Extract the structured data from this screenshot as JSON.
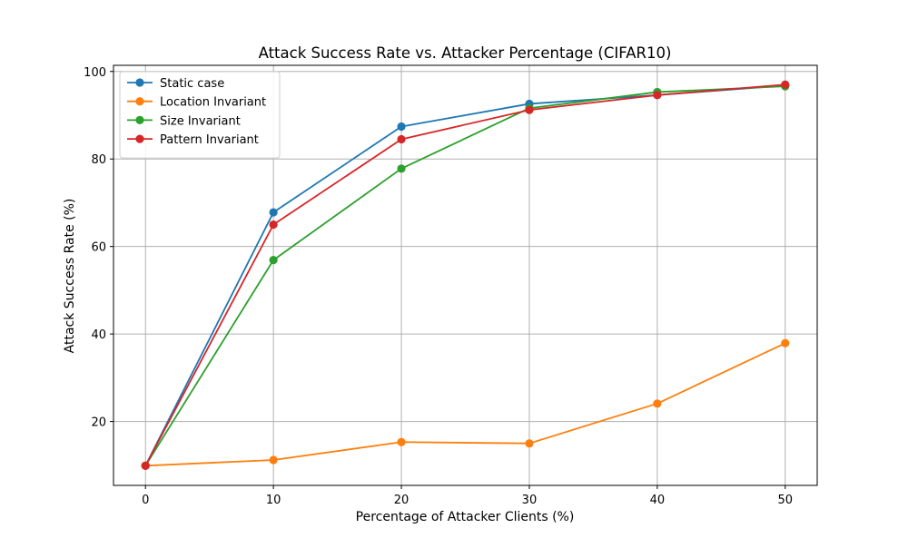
{
  "chart_data": {
    "type": "line",
    "title": "Attack Success Rate vs. Attacker Percentage (CIFAR10)",
    "xlabel": "Percentage of Attacker Clients (%)",
    "ylabel": "Attack Success Rate (%)",
    "x": [
      0,
      10,
      20,
      30,
      40,
      50
    ],
    "xticks": [
      "0",
      "10",
      "20",
      "30",
      "40",
      "50"
    ],
    "yticks": [
      "20",
      "40",
      "60",
      "80",
      "100"
    ],
    "xlim": [
      -2.5,
      52.5
    ],
    "ylim": [
      5.4,
      101.4
    ],
    "grid": true,
    "legend_position": "top-left",
    "series": [
      {
        "name": "Static case",
        "color": "#1f77b4",
        "values": [
          9.9,
          67.8,
          87.4,
          92.6,
          94.6,
          96.8
        ]
      },
      {
        "name": "Location Invariant",
        "color": "#ff7f0e",
        "values": [
          9.9,
          11.2,
          15.3,
          15.0,
          24.1,
          37.9
        ]
      },
      {
        "name": "Size Invariant",
        "color": "#2ca02c",
        "values": [
          9.9,
          56.9,
          77.8,
          91.6,
          95.3,
          96.6
        ]
      },
      {
        "name": "Pattern Invariant",
        "color": "#d62728",
        "values": [
          9.9,
          65.0,
          84.5,
          91.2,
          94.6,
          97.0
        ]
      }
    ]
  }
}
